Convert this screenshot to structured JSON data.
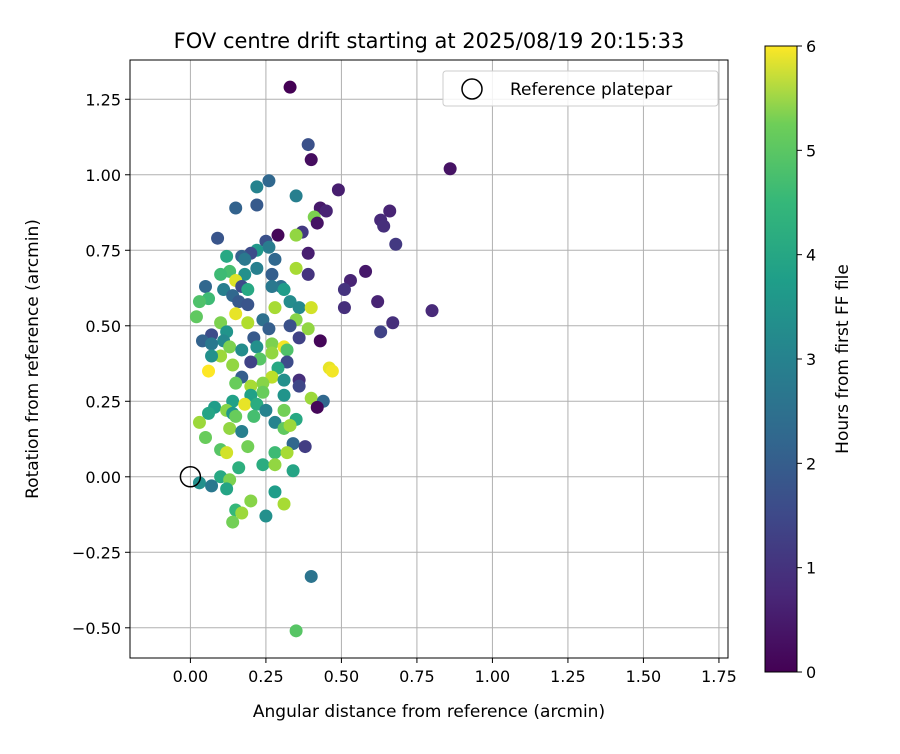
{
  "chart_data": {
    "type": "scatter",
    "title": "FOV centre drift starting at 2025/08/19 20:15:33",
    "xlabel": "Angular distance from reference (arcmin)",
    "ylabel": "Rotation from reference (arcmin)",
    "xlim": [
      -0.2,
      1.78
    ],
    "ylim": [
      -0.6,
      1.38
    ],
    "x_ticks": [
      "0.00",
      "0.25",
      "0.50",
      "0.75",
      "1.00",
      "1.25",
      "1.50",
      "1.75"
    ],
    "x_tick_values": [
      0,
      0.25,
      0.5,
      0.75,
      1.0,
      1.25,
      1.5,
      1.75
    ],
    "y_ticks": [
      "−0.50",
      "−0.25",
      "0.00",
      "0.25",
      "0.50",
      "0.75",
      "1.00",
      "1.25"
    ],
    "y_tick_values": [
      -0.5,
      -0.25,
      0,
      0.25,
      0.5,
      0.75,
      1.0,
      1.25
    ],
    "grid": true,
    "legend": {
      "placement": "upper right",
      "entries": [
        "Reference platepar"
      ]
    },
    "reference_point": {
      "x": 0.0,
      "y": 0.0
    },
    "colorbar": {
      "label": "Hours from first FF file",
      "colormap": "viridis",
      "range": [
        0,
        6
      ],
      "ticks": [
        "0",
        "1",
        "2",
        "3",
        "4",
        "5",
        "6"
      ],
      "tick_values": [
        0,
        1,
        2,
        3,
        4,
        5,
        6
      ]
    },
    "points": [
      [
        0.33,
        1.29,
        0.0
      ],
      [
        0.86,
        1.02,
        0.3
      ],
      [
        0.39,
        1.1,
        1.5
      ],
      [
        0.4,
        1.05,
        0.2
      ],
      [
        0.26,
        0.98,
        2.0
      ],
      [
        0.22,
        0.96,
        2.7
      ],
      [
        0.49,
        0.95,
        0.5
      ],
      [
        0.35,
        0.93,
        2.6
      ],
      [
        0.43,
        0.89,
        0.4
      ],
      [
        0.45,
        0.88,
        0.6
      ],
      [
        0.66,
        0.88,
        0.6
      ],
      [
        0.41,
        0.86,
        4.8
      ],
      [
        0.22,
        0.9,
        1.7
      ],
      [
        0.15,
        0.89,
        1.9
      ],
      [
        0.63,
        0.85,
        0.7
      ],
      [
        0.64,
        0.83,
        0.8
      ],
      [
        0.42,
        0.84,
        0.3
      ],
      [
        0.37,
        0.81,
        1.0
      ],
      [
        0.29,
        0.8,
        0.1
      ],
      [
        0.35,
        0.8,
        5.0
      ],
      [
        0.09,
        0.79,
        1.6
      ],
      [
        0.68,
        0.77,
        1.0
      ],
      [
        0.25,
        0.78,
        1.5
      ],
      [
        0.26,
        0.76,
        2.5
      ],
      [
        0.22,
        0.75,
        3.2
      ],
      [
        0.2,
        0.74,
        1.4
      ],
      [
        0.39,
        0.74,
        0.5
      ],
      [
        0.17,
        0.73,
        1.9
      ],
      [
        0.12,
        0.73,
        3.6
      ],
      [
        0.28,
        0.72,
        2.0
      ],
      [
        0.18,
        0.72,
        2.4
      ],
      [
        0.35,
        0.69,
        5.2
      ],
      [
        0.22,
        0.69,
        2.6
      ],
      [
        0.13,
        0.68,
        4.2
      ],
      [
        0.1,
        0.67,
        4.1
      ],
      [
        0.27,
        0.67,
        1.8
      ],
      [
        0.39,
        0.67,
        0.9
      ],
      [
        0.18,
        0.67,
        3.0
      ],
      [
        0.15,
        0.65,
        5.7
      ],
      [
        0.53,
        0.65,
        0.6
      ],
      [
        0.58,
        0.68,
        0.4
      ],
      [
        0.17,
        0.63,
        1.4
      ],
      [
        0.3,
        0.63,
        2.2
      ],
      [
        0.05,
        0.63,
        2.0
      ],
      [
        0.11,
        0.62,
        2.6
      ],
      [
        0.19,
        0.62,
        3.6
      ],
      [
        0.27,
        0.63,
        2.4
      ],
      [
        0.31,
        0.62,
        3.3
      ],
      [
        0.51,
        0.62,
        0.9
      ],
      [
        0.14,
        0.6,
        2.0
      ],
      [
        0.06,
        0.59,
        4.1
      ],
      [
        0.03,
        0.58,
        4.3
      ],
      [
        0.16,
        0.58,
        1.7
      ],
      [
        0.33,
        0.58,
        2.9
      ],
      [
        0.19,
        0.57,
        1.6
      ],
      [
        0.36,
        0.56,
        2.8
      ],
      [
        0.28,
        0.56,
        5.2
      ],
      [
        0.4,
        0.56,
        5.6
      ],
      [
        0.51,
        0.56,
        0.8
      ],
      [
        0.62,
        0.58,
        0.6
      ],
      [
        0.8,
        0.55,
        0.7
      ],
      [
        0.15,
        0.54,
        5.8
      ],
      [
        0.02,
        0.53,
        4.5
      ],
      [
        0.24,
        0.52,
        2.2
      ],
      [
        0.1,
        0.51,
        4.8
      ],
      [
        0.35,
        0.52,
        4.9
      ],
      [
        0.19,
        0.51,
        5.3
      ],
      [
        0.33,
        0.5,
        1.5
      ],
      [
        0.39,
        0.49,
        5.0
      ],
      [
        0.67,
        0.51,
        0.8
      ],
      [
        0.26,
        0.49,
        1.8
      ],
      [
        0.12,
        0.48,
        3.1
      ],
      [
        0.63,
        0.48,
        1.2
      ],
      [
        0.07,
        0.47,
        1.4
      ],
      [
        0.21,
        0.46,
        1.7
      ],
      [
        0.04,
        0.45,
        1.9
      ],
      [
        0.11,
        0.45,
        2.8
      ],
      [
        0.36,
        0.46,
        1.2
      ],
      [
        0.43,
        0.45,
        0.1
      ],
      [
        0.07,
        0.44,
        2.4
      ],
      [
        0.13,
        0.43,
        4.8
      ],
      [
        0.22,
        0.43,
        3.0
      ],
      [
        0.27,
        0.44,
        4.8
      ],
      [
        0.31,
        0.43,
        5.9
      ],
      [
        0.17,
        0.42,
        2.9
      ],
      [
        0.32,
        0.42,
        4.3
      ],
      [
        0.1,
        0.4,
        5.1
      ],
      [
        0.27,
        0.41,
        5.0
      ],
      [
        0.07,
        0.4,
        3.0
      ],
      [
        0.23,
        0.39,
        4.4
      ],
      [
        0.2,
        0.38,
        1.2
      ],
      [
        0.32,
        0.38,
        1.4
      ],
      [
        0.14,
        0.37,
        5.0
      ],
      [
        0.29,
        0.36,
        3.6
      ],
      [
        0.06,
        0.35,
        6.0
      ],
      [
        0.46,
        0.36,
        5.8
      ],
      [
        0.47,
        0.35,
        5.9
      ],
      [
        0.17,
        0.33,
        1.8
      ],
      [
        0.27,
        0.33,
        5.4
      ],
      [
        0.31,
        0.32,
        3.0
      ],
      [
        0.36,
        0.32,
        0.8
      ],
      [
        0.15,
        0.31,
        4.6
      ],
      [
        0.24,
        0.31,
        4.9
      ],
      [
        0.36,
        0.3,
        1.3
      ],
      [
        0.2,
        0.3,
        5.2
      ],
      [
        0.24,
        0.28,
        4.6
      ],
      [
        0.31,
        0.27,
        3.1
      ],
      [
        0.2,
        0.27,
        3.4
      ],
      [
        0.14,
        0.25,
        3.4
      ],
      [
        0.4,
        0.26,
        5.1
      ],
      [
        0.44,
        0.25,
        2.0
      ],
      [
        0.18,
        0.24,
        5.8
      ],
      [
        0.22,
        0.24,
        3.7
      ],
      [
        0.08,
        0.23,
        3.3
      ],
      [
        0.42,
        0.23,
        0.1
      ],
      [
        0.12,
        0.22,
        4.9
      ],
      [
        0.14,
        0.21,
        3.2
      ],
      [
        0.31,
        0.22,
        4.7
      ],
      [
        0.06,
        0.21,
        3.5
      ],
      [
        0.25,
        0.22,
        2.7
      ],
      [
        0.15,
        0.2,
        4.6
      ],
      [
        0.21,
        0.2,
        4.2
      ],
      [
        0.35,
        0.19,
        3.6
      ],
      [
        0.28,
        0.18,
        2.7
      ],
      [
        0.03,
        0.18,
        5.1
      ],
      [
        0.13,
        0.16,
        5.0
      ],
      [
        0.31,
        0.16,
        4.5
      ],
      [
        0.17,
        0.15,
        2.6
      ],
      [
        0.33,
        0.17,
        5.1
      ],
      [
        0.05,
        0.13,
        4.6
      ],
      [
        0.34,
        0.11,
        2.0
      ],
      [
        0.38,
        0.1,
        1.1
      ],
      [
        0.19,
        0.1,
        4.7
      ],
      [
        0.1,
        0.09,
        4.4
      ],
      [
        0.28,
        0.08,
        4.1
      ],
      [
        0.12,
        0.08,
        5.6
      ],
      [
        0.32,
        0.08,
        5.2
      ],
      [
        0.24,
        0.04,
        3.7
      ],
      [
        0.28,
        0.04,
        5.0
      ],
      [
        0.16,
        0.03,
        3.8
      ],
      [
        0.34,
        0.02,
        3.5
      ],
      [
        0.1,
        0.0,
        3.6
      ],
      [
        0.13,
        -0.01,
        4.8
      ],
      [
        0.03,
        -0.02,
        3.0
      ],
      [
        0.07,
        -0.03,
        2.4
      ],
      [
        0.12,
        -0.04,
        3.5
      ],
      [
        0.28,
        -0.05,
        3.3
      ],
      [
        0.2,
        -0.08,
        4.9
      ],
      [
        0.31,
        -0.09,
        5.2
      ],
      [
        0.15,
        -0.11,
        4.0
      ],
      [
        0.17,
        -0.12,
        5.1
      ],
      [
        0.25,
        -0.13,
        3.0
      ],
      [
        0.14,
        -0.15,
        4.7
      ],
      [
        0.4,
        -0.33,
        2.3
      ],
      [
        0.35,
        -0.51,
        4.4
      ]
    ]
  }
}
